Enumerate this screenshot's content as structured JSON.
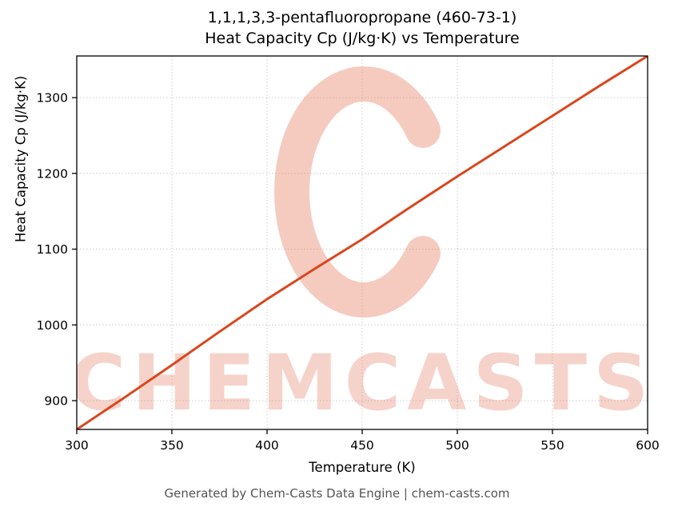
{
  "title": {
    "line1": "1,1,1,3,3-pentafluoropropane (460-73-1)",
    "line2": "Heat Capacity Cp (J/kg·K) vs Temperature"
  },
  "footer": {
    "text": "Generated by Chem-Casts Data Engine | chem-casts.com"
  },
  "watermark": {
    "text": "CHEMCASTS",
    "color": "#e8836a",
    "text_opacity": 0.35,
    "ring_opacity": 0.42
  },
  "chart_data": {
    "type": "line",
    "title": "1,1,1,3,3-pentafluoropropane (460-73-1) Heat Capacity Cp (J/kg·K) vs Temperature",
    "xlabel": "Temperature (K)",
    "ylabel": "Heat Capacity Cp (J/kg·K)",
    "x": [
      300,
      325,
      350,
      375,
      400,
      425,
      450,
      475,
      500,
      525,
      550,
      575,
      600
    ],
    "series": [
      {
        "name": "Heat Capacity Cp",
        "values": [
          862,
          904,
          947,
          991,
          1034,
          1074,
          1113,
          1155,
          1196,
          1236,
          1276,
          1316,
          1355
        ],
        "color": "#d9471e"
      }
    ],
    "xlim": [
      300,
      600
    ],
    "ylim": [
      862,
      1355
    ],
    "xticks": [
      300,
      350,
      400,
      450,
      500,
      550,
      600
    ],
    "yticks": [
      900,
      1000,
      1100,
      1200,
      1300
    ],
    "grid": true,
    "grid_color": "#cccccc",
    "axis_color": "#000000",
    "legend": "none"
  }
}
